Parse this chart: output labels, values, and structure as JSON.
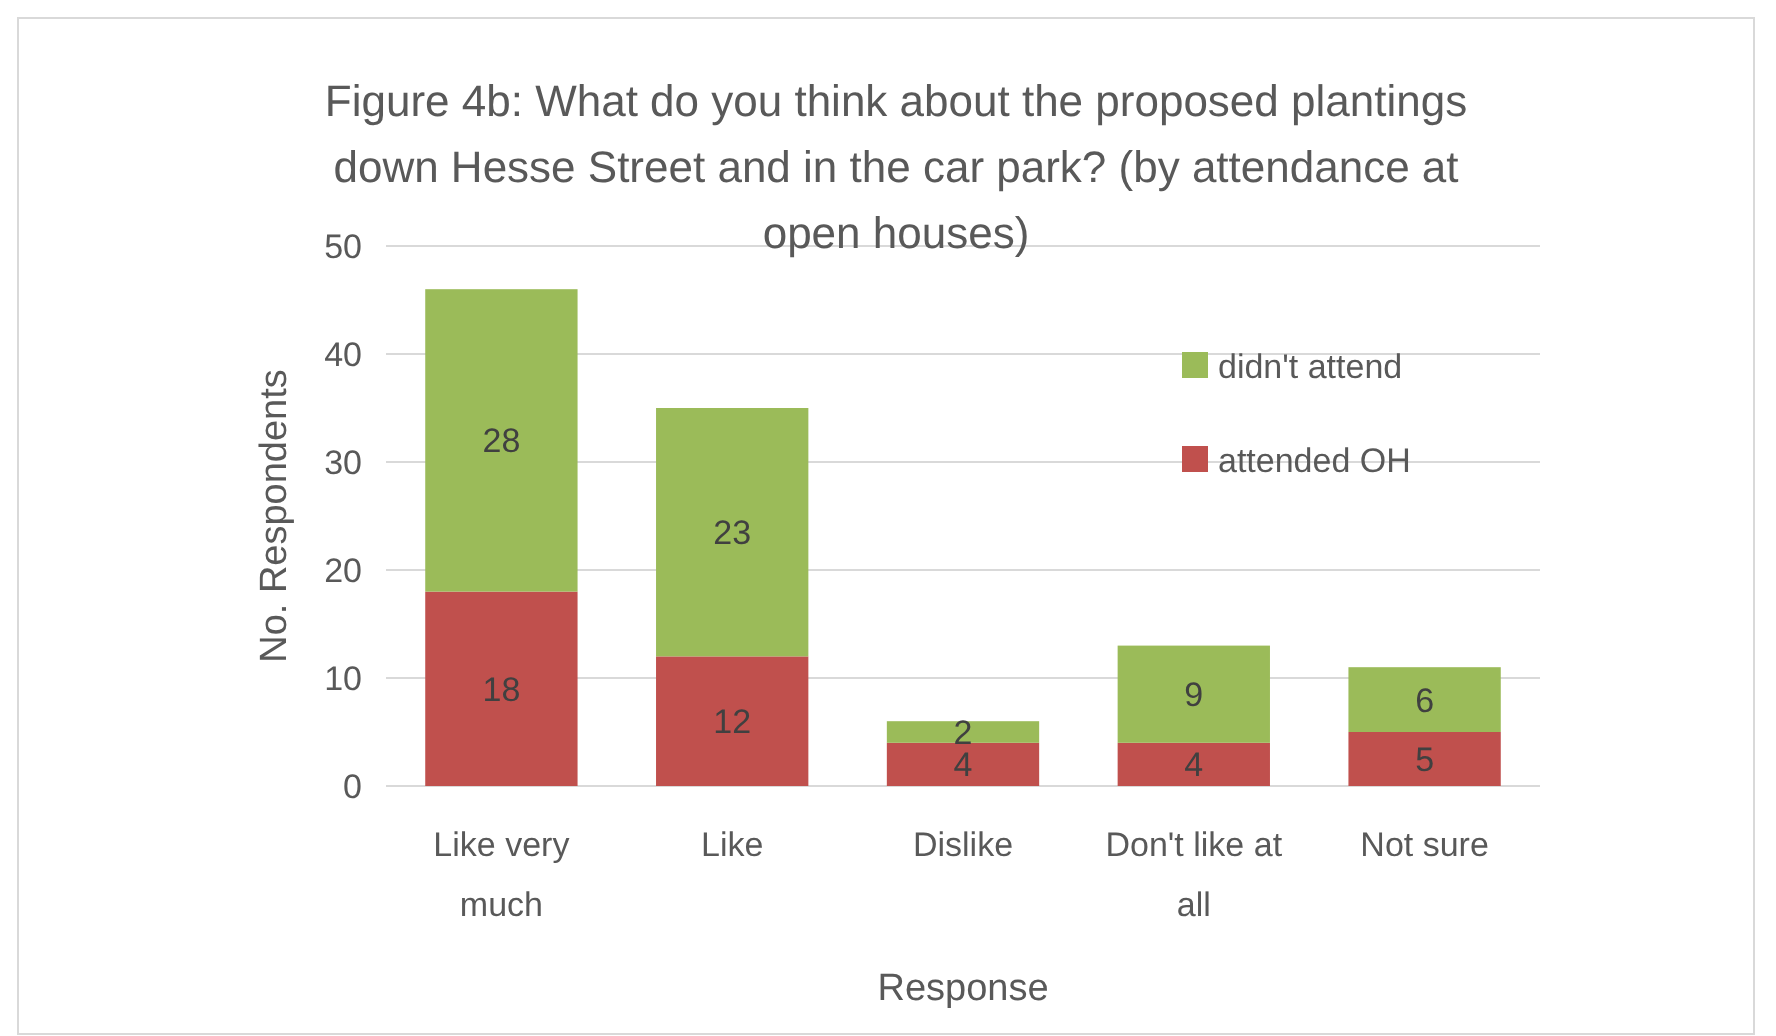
{
  "chart_data": {
    "type": "bar",
    "title": "Figure 4b: What do you think about the proposed plantings down Hesse Street and in the car park? (by attendance at open houses)",
    "xlabel": "Response",
    "ylabel": "No. Respondents",
    "categories": [
      "Like very much",
      "Like",
      "Dislike",
      "Don't like at all",
      "Not sure"
    ],
    "stacked": true,
    "series": [
      {
        "name": "attended OH",
        "color": "#c0504d",
        "values": [
          18,
          12,
          4,
          4,
          5
        ]
      },
      {
        "name": "didn't attend",
        "color": "#9bbb59",
        "values": [
          28,
          23,
          2,
          9,
          6
        ]
      }
    ],
    "ylim": [
      0,
      50
    ],
    "yticks": [
      0,
      10,
      20,
      30,
      40,
      50
    ],
    "grid": "y",
    "legend": "right",
    "data_labels": true
  }
}
